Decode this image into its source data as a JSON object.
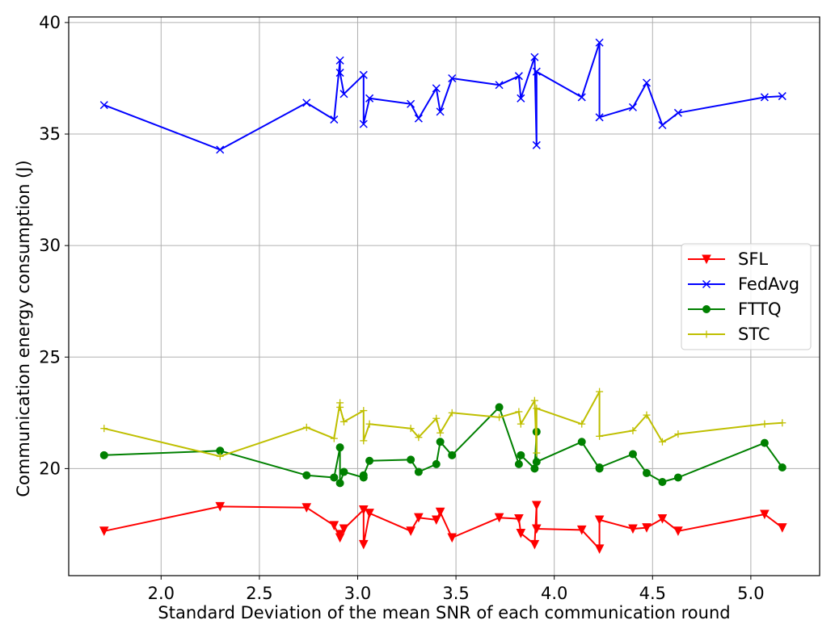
{
  "chart_data": {
    "type": "line",
    "title": "",
    "xlabel": "Standard Deviation of the mean SNR of each communication round",
    "ylabel": "Communication energy consumption (J)",
    "xlim": [
      1.53,
      5.35
    ],
    "ylim": [
      15.2,
      40.25
    ],
    "xticks": [
      2.0,
      2.5,
      3.0,
      3.5,
      4.0,
      4.5,
      5.0
    ],
    "xtick_labels": [
      "2.0",
      "2.5",
      "3.0",
      "3.5",
      "4.0",
      "4.5",
      "5.0"
    ],
    "yticks": [
      20,
      25,
      30,
      35,
      40
    ],
    "ytick_labels": [
      "20",
      "25",
      "30",
      "35",
      "40"
    ],
    "grid": true,
    "legend_position": "center-right",
    "x": [
      1.71,
      2.3,
      2.74,
      2.88,
      2.91,
      2.91,
      2.93,
      3.03,
      3.03,
      3.06,
      3.27,
      3.31,
      3.4,
      3.42,
      3.48,
      3.72,
      3.82,
      3.83,
      3.9,
      3.91,
      3.91,
      4.14,
      4.23,
      4.23,
      4.4,
      4.47,
      4.55,
      4.63,
      5.07,
      5.16
    ],
    "series": [
      {
        "name": "SFL",
        "color": "#ff0000",
        "marker": "triangle-down",
        "values": [
          17.2,
          18.3,
          18.25,
          17.45,
          16.9,
          17.05,
          17.3,
          18.15,
          16.6,
          18.0,
          17.2,
          17.8,
          17.7,
          18.05,
          16.9,
          17.8,
          17.75,
          17.1,
          16.6,
          18.35,
          17.3,
          17.25,
          16.4,
          17.7,
          17.3,
          17.35,
          17.75,
          17.2,
          17.95,
          17.35
        ]
      },
      {
        "name": "FedAvg",
        "color": "#0000ff",
        "marker": "x",
        "values": [
          36.3,
          34.3,
          36.4,
          35.65,
          38.3,
          37.75,
          36.8,
          37.65,
          35.45,
          36.6,
          36.35,
          35.7,
          37.05,
          36.0,
          37.5,
          37.2,
          37.6,
          36.6,
          38.45,
          34.5,
          37.8,
          36.65,
          39.1,
          35.75,
          36.2,
          37.3,
          35.4,
          35.95,
          36.65,
          36.7
        ]
      },
      {
        "name": "FTTQ",
        "color": "#008000",
        "marker": "circle",
        "values": [
          20.6,
          20.8,
          19.7,
          19.6,
          20.95,
          19.35,
          19.85,
          19.6,
          19.7,
          20.35,
          20.4,
          19.85,
          20.2,
          21.2,
          20.6,
          22.75,
          20.2,
          20.6,
          20.0,
          21.65,
          20.3,
          21.2,
          20.0,
          20.05,
          20.65,
          19.8,
          19.4,
          19.6,
          21.15,
          20.05
        ]
      },
      {
        "name": "STC",
        "color": "#bfbf00",
        "marker": "plus",
        "values": [
          21.8,
          20.55,
          21.85,
          21.35,
          22.95,
          22.75,
          22.1,
          22.6,
          21.25,
          22.0,
          21.8,
          21.4,
          22.25,
          21.6,
          22.5,
          22.3,
          22.55,
          22.0,
          23.05,
          20.7,
          22.7,
          22.0,
          23.45,
          21.45,
          21.7,
          22.4,
          21.2,
          21.55,
          22.0,
          22.05
        ]
      }
    ]
  }
}
